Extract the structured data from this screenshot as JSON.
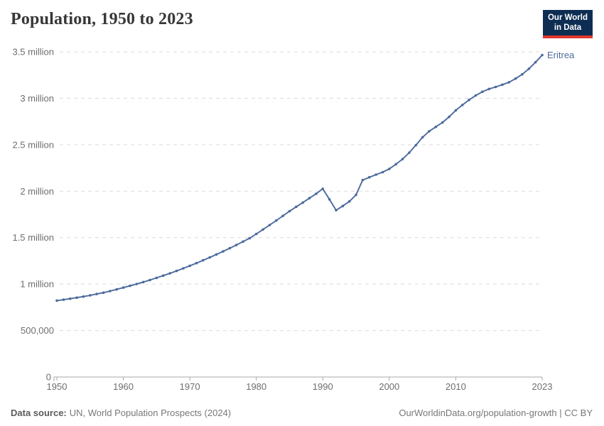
{
  "header": {
    "title": "Population, 1950 to 2023"
  },
  "logo": {
    "line1": "Our World",
    "line2": "in Data"
  },
  "colors": {
    "line": "#4c6a9c",
    "entity_label": "#4c6a9c",
    "grid": "#dcdcdc",
    "axis": "#a8a8a8",
    "tick_label": "#6e6e6e",
    "title_text": "#373737",
    "footer_text": "#787878",
    "logo_bg": "#0e2d52",
    "logo_underline": "#e0372e"
  },
  "chart_data": {
    "type": "line",
    "title": "Population, 1950 to 2023",
    "xlabel": "",
    "ylabel": "",
    "xlim": [
      1950,
      2023
    ],
    "ylim": [
      0,
      3500000
    ],
    "grid": true,
    "legend": "end-of-line-label",
    "x": [
      1950,
      1951,
      1952,
      1953,
      1954,
      1955,
      1956,
      1957,
      1958,
      1959,
      1960,
      1961,
      1962,
      1963,
      1964,
      1965,
      1966,
      1967,
      1968,
      1969,
      1970,
      1971,
      1972,
      1973,
      1974,
      1975,
      1976,
      1977,
      1978,
      1979,
      1980,
      1981,
      1982,
      1983,
      1984,
      1985,
      1986,
      1987,
      1988,
      1989,
      1990,
      1991,
      1992,
      1993,
      1994,
      1995,
      1996,
      1997,
      1998,
      1999,
      2000,
      2001,
      2002,
      2003,
      2004,
      2005,
      2006,
      2007,
      2008,
      2009,
      2010,
      2011,
      2012,
      2013,
      2014,
      2015,
      2016,
      2017,
      2018,
      2019,
      2020,
      2021,
      2022,
      2023
    ],
    "series": [
      {
        "name": "Eritrea",
        "color": "#4c6a9c",
        "values": [
          822000,
          832000,
          843000,
          854000,
          866000,
          879000,
          893000,
          908000,
          925000,
          943000,
          962000,
          981000,
          1001000,
          1022000,
          1044000,
          1067000,
          1091000,
          1116000,
          1142000,
          1169000,
          1197000,
          1226000,
          1256000,
          1287000,
          1319000,
          1352000,
          1386000,
          1421000,
          1457000,
          1494000,
          1540000,
          1587000,
          1635000,
          1684000,
          1734000,
          1785000,
          1832000,
          1878000,
          1925000,
          1972000,
          2026000,
          1912000,
          1795000,
          1840000,
          1890000,
          1960000,
          2120000,
          2150000,
          2178000,
          2205000,
          2240000,
          2290000,
          2345000,
          2415000,
          2495000,
          2580000,
          2645000,
          2692000,
          2740000,
          2800000,
          2870000,
          2928000,
          2983000,
          3030000,
          3070000,
          3100000,
          3122000,
          3146000,
          3172000,
          3212000,
          3258000,
          3317000,
          3388000,
          3465000
        ]
      }
    ],
    "y_ticks": [
      {
        "value": 0,
        "label": "0"
      },
      {
        "value": 500000,
        "label": "500,000"
      },
      {
        "value": 1000000,
        "label": "1 million"
      },
      {
        "value": 1500000,
        "label": "1.5 million"
      },
      {
        "value": 2000000,
        "label": "2 million"
      },
      {
        "value": 2500000,
        "label": "2.5 million"
      },
      {
        "value": 3000000,
        "label": "3 million"
      },
      {
        "value": 3500000,
        "label": "3.5 million"
      }
    ],
    "x_ticks": [
      {
        "value": 1950,
        "label": "1950"
      },
      {
        "value": 1960,
        "label": "1960"
      },
      {
        "value": 1970,
        "label": "1970"
      },
      {
        "value": 1980,
        "label": "1980"
      },
      {
        "value": 1990,
        "label": "1990"
      },
      {
        "value": 2000,
        "label": "2000"
      },
      {
        "value": 2010,
        "label": "2010"
      },
      {
        "value": 2023,
        "label": "2023"
      }
    ]
  },
  "footer": {
    "source_label": "Data source:",
    "source_value": "UN, World Population Prospects (2024)",
    "link": "OurWorldinData.org/population-growth",
    "separator": " | ",
    "license": "CC BY"
  }
}
